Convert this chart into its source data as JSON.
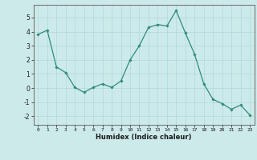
{
  "x": [
    0,
    1,
    2,
    3,
    4,
    5,
    6,
    7,
    8,
    9,
    10,
    11,
    12,
    13,
    14,
    15,
    16,
    17,
    18,
    19,
    20,
    21,
    22,
    23
  ],
  "y": [
    3.8,
    4.1,
    1.5,
    1.1,
    0.05,
    -0.3,
    0.05,
    0.3,
    0.05,
    0.5,
    2.0,
    3.0,
    4.3,
    4.5,
    4.4,
    5.5,
    3.9,
    2.4,
    0.3,
    -0.8,
    -1.1,
    -1.5,
    -1.2,
    -1.9
  ],
  "line_color": "#2e8b7a",
  "marker_color": "#2e8b7a",
  "bg_color": "#cdeaea",
  "grid_color": "#b0d8d8",
  "xlabel": "Humidex (Indice chaleur)",
  "ylim": [
    -2.6,
    5.9
  ],
  "xlim": [
    -0.5,
    23.5
  ],
  "yticks": [
    -2,
    -1,
    0,
    1,
    2,
    3,
    4,
    5
  ],
  "xticks": [
    0,
    1,
    2,
    3,
    4,
    5,
    6,
    7,
    8,
    9,
    10,
    11,
    12,
    13,
    14,
    15,
    16,
    17,
    18,
    19,
    20,
    21,
    22,
    23
  ],
  "figsize": [
    3.2,
    2.0
  ],
  "dpi": 100
}
